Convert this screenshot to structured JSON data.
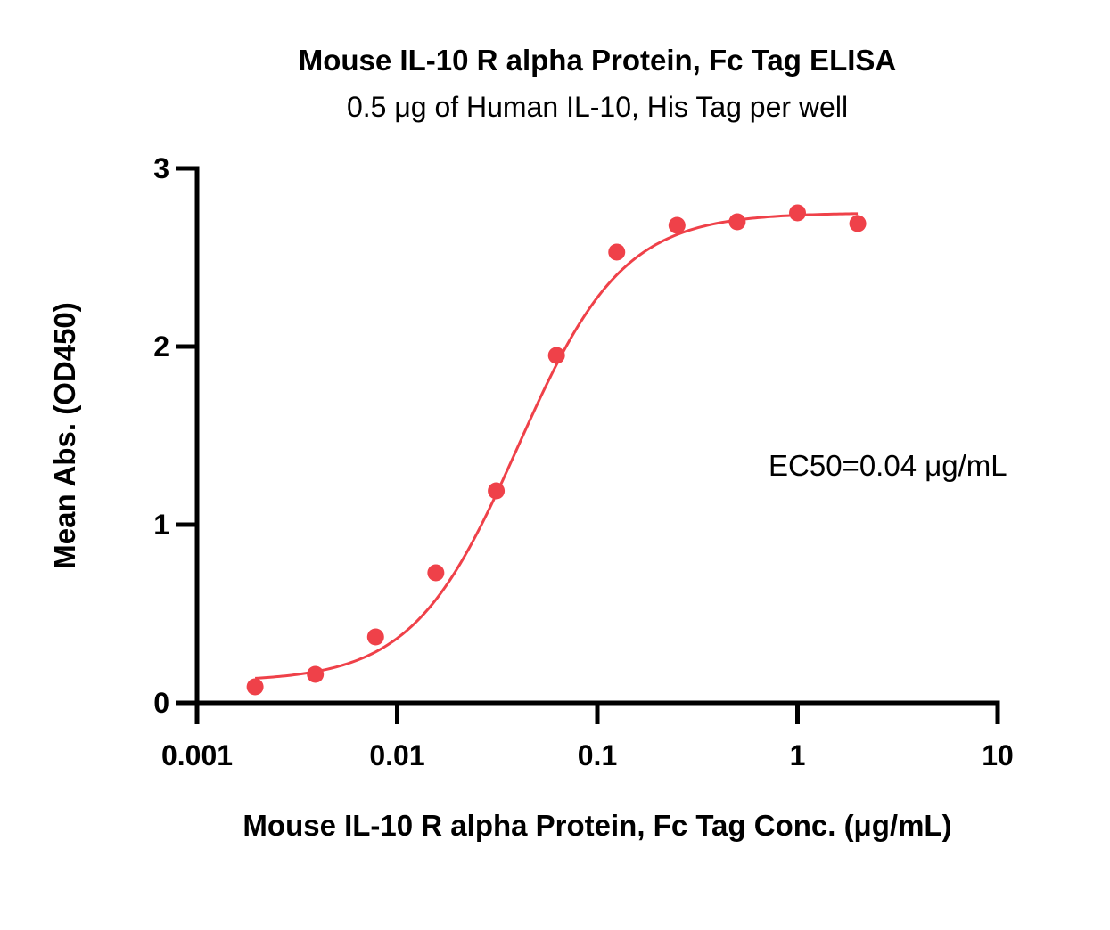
{
  "chart_data": {
    "type": "scatter",
    "title": "Mouse IL-10 R alpha Protein, Fc Tag ELISA",
    "subtitle": "0.5 μg of Human IL-10, His Tag per well",
    "xlabel": "Mouse IL-10 R alpha Protein, Fc Tag Conc. (μg/mL)",
    "ylabel": "Mean Abs. (OD450)",
    "x_scale": "log",
    "xlim": [
      0.001,
      10
    ],
    "ylim": [
      0,
      3
    ],
    "x_ticks": [
      0.001,
      0.01,
      0.1,
      1,
      10
    ],
    "x_tick_labels": [
      "0.001",
      "0.01",
      "0.1",
      "1",
      "10"
    ],
    "y_ticks": [
      0,
      1,
      2,
      3
    ],
    "y_tick_labels": [
      "0",
      "1",
      "2",
      "3"
    ],
    "grid": false,
    "series": [
      {
        "color": "#ef4149",
        "x": [
          0.00195,
          0.0039,
          0.0078,
          0.0156,
          0.03125,
          0.0625,
          0.125,
          0.25,
          0.5,
          1,
          2
        ],
        "y": [
          0.09,
          0.16,
          0.37,
          0.73,
          1.19,
          1.95,
          2.53,
          2.68,
          2.7,
          2.75,
          2.69
        ]
      }
    ],
    "fit_curve": {
      "model": "4PL",
      "bottom": 0.12,
      "top": 2.75,
      "ec50": 0.04,
      "hill": 1.65,
      "color": "#ef4149"
    },
    "annotation": "EC50=0.04 μg/mL"
  }
}
